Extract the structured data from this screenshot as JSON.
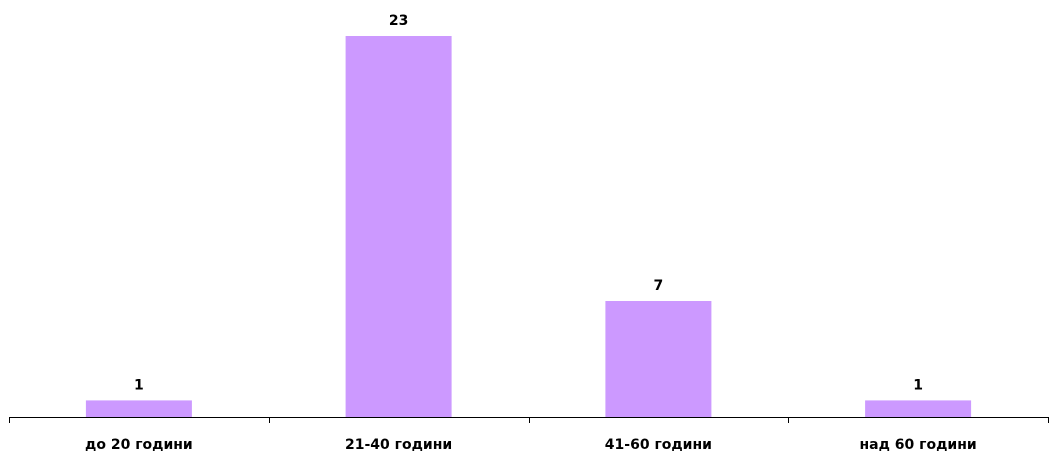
{
  "chart_data": {
    "type": "bar",
    "categories": [
      "до 20 години",
      "21-40 години",
      "41-60 години",
      "над 60 години"
    ],
    "values": [
      1,
      23,
      7,
      1
    ],
    "title": "",
    "xlabel": "",
    "ylabel": "",
    "ylim": [
      0,
      23
    ],
    "grid": false,
    "legend": "none",
    "bar_color": "#cc99ff",
    "axis_color": "#000000"
  }
}
